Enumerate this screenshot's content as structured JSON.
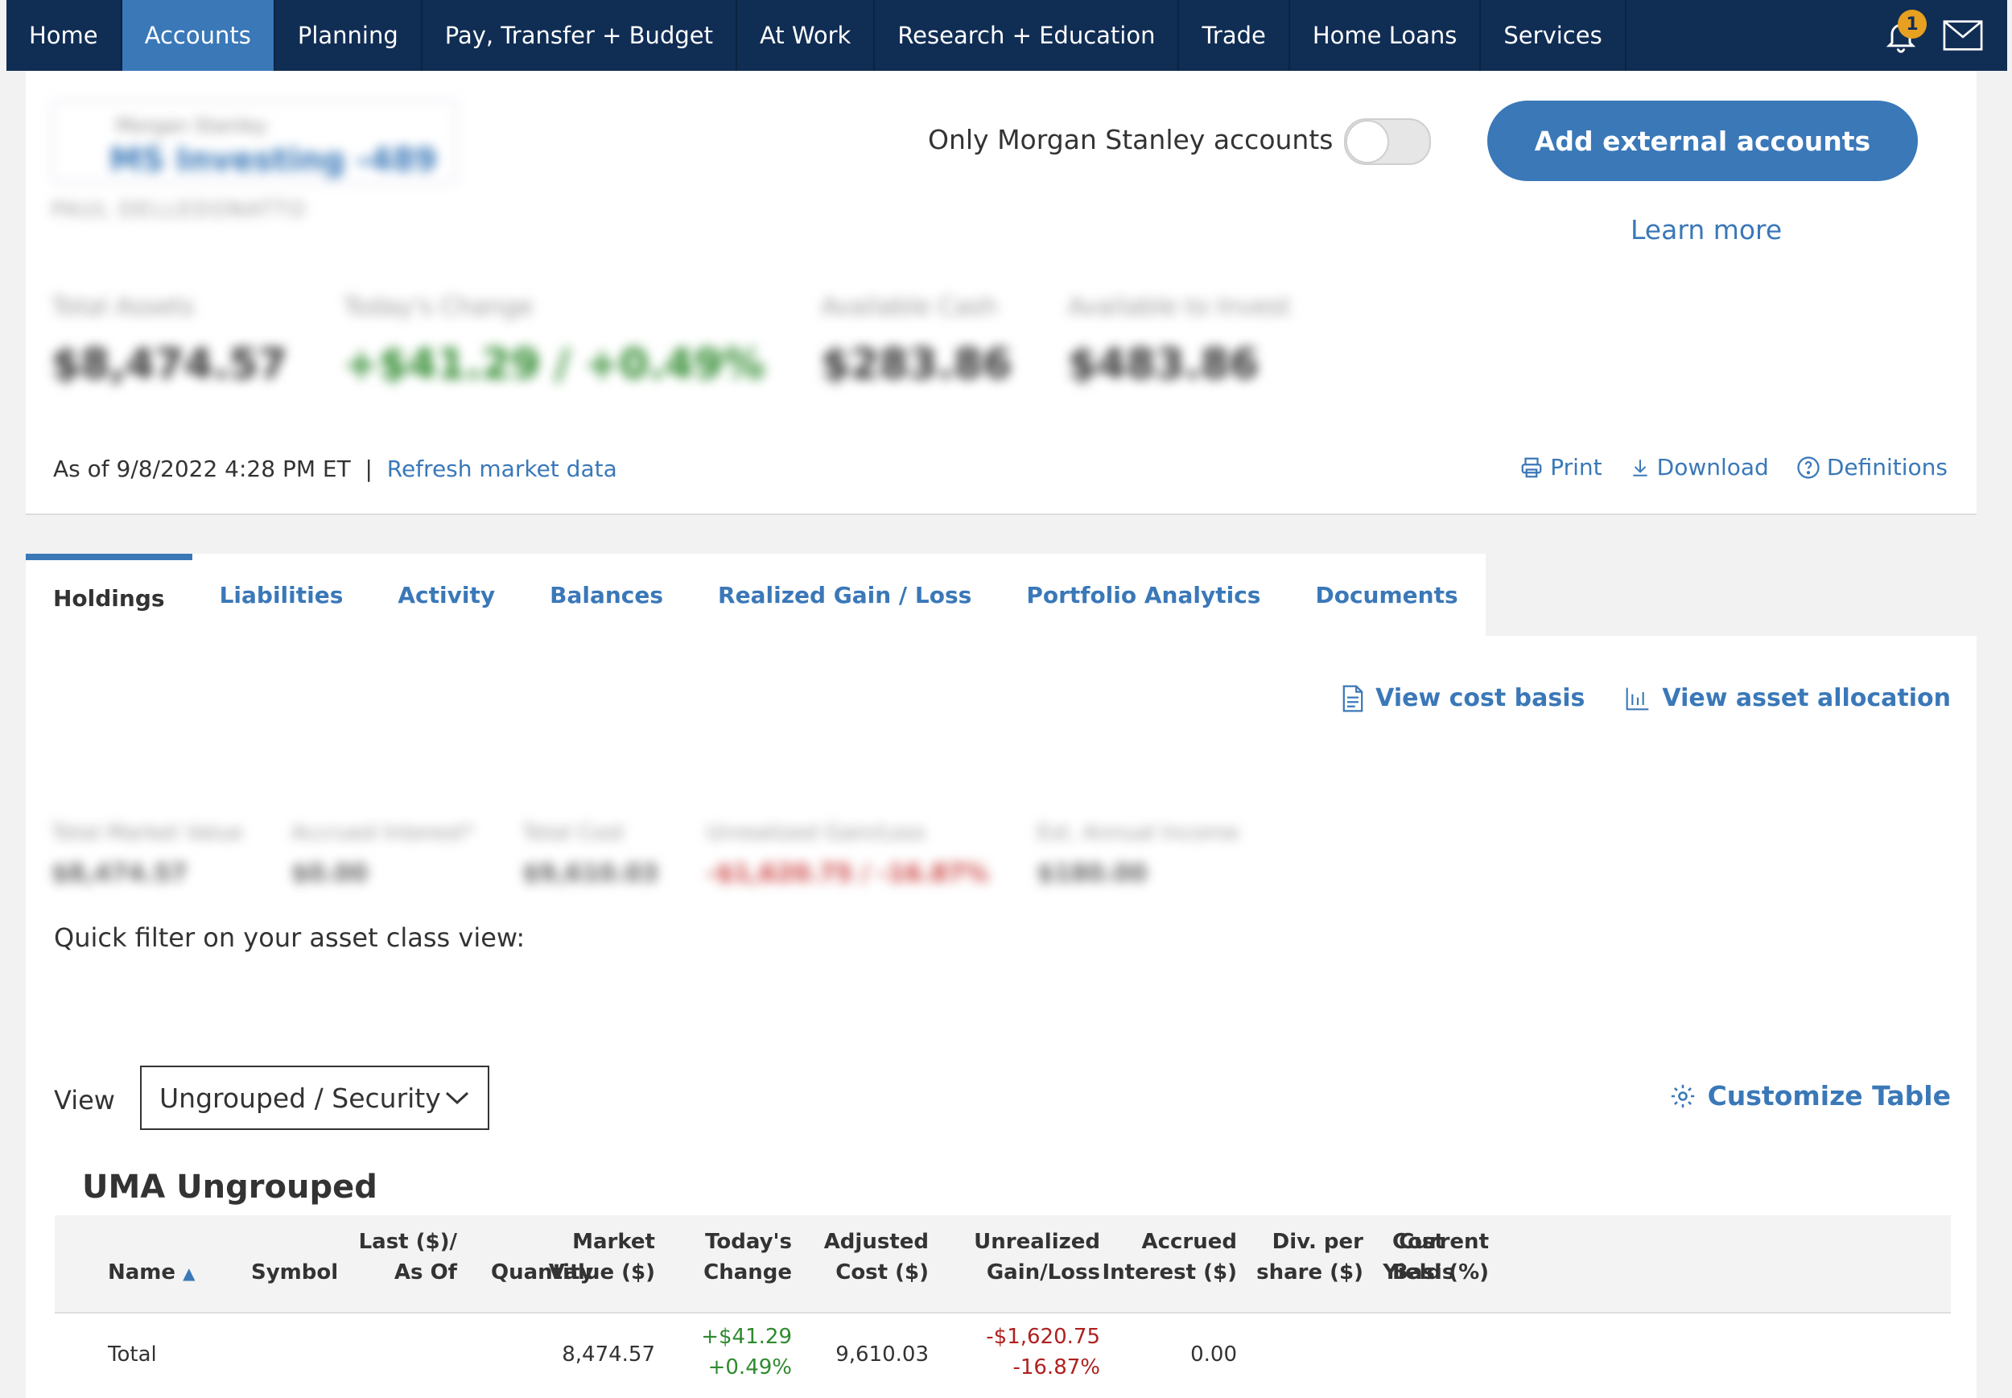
{
  "nav": {
    "items": [
      "Home",
      "Accounts",
      "Planning",
      "Pay, Transfer + Budget",
      "At Work",
      "Research + Education",
      "Trade",
      "Home Loans",
      "Services"
    ],
    "active": "Accounts",
    "notification_count": "1"
  },
  "account": {
    "firm": "Morgan Stanley",
    "name": "MS Investing -489",
    "owner": "PAUL DELLEDONATTO"
  },
  "toggle": {
    "label": "Only Morgan Stanley accounts",
    "on": false
  },
  "add_button": "Add external accounts",
  "learn_more": "Learn more",
  "summary": [
    {
      "label": "Total Assets",
      "value": "$8,474.57"
    },
    {
      "label": "Today's Change",
      "value": "+$41.29 / +0.49%"
    },
    {
      "label": "Available Cash",
      "value": "$283.86"
    },
    {
      "label": "Available to Invest",
      "value": "$483.86"
    }
  ],
  "as_of": "As of 9/8/2022 4:28 PM ET",
  "separator": "|",
  "refresh": "Refresh market data",
  "tools": {
    "print": "Print",
    "download": "Download",
    "definitions": "Definitions"
  },
  "tabs": [
    "Holdings",
    "Liabilities",
    "Activity",
    "Balances",
    "Realized Gain / Loss",
    "Portfolio Analytics",
    "Documents"
  ],
  "sublinks": {
    "cost_basis": "View cost basis",
    "asset_allocation": "View asset allocation"
  },
  "metrics": [
    {
      "label": "Total Market Value",
      "value": "$8,474.57"
    },
    {
      "label": "Accrued Interest*",
      "value": "$0.00"
    },
    {
      "label": "Total Cost",
      "value": "$9,610.03"
    },
    {
      "label": "Unrealized Gain/Loss",
      "value": "-$1,620.75 / -16.87%"
    },
    {
      "label": "Est. Annual Income",
      "value": "$180.00"
    }
  ],
  "quick_filter": "Quick filter on your asset class view:",
  "view": {
    "label": "View",
    "selected": "Ungrouped / Security"
  },
  "customize": "Customize Table",
  "table": {
    "title": "UMA Ungrouped",
    "headers": {
      "name": "Name",
      "symbol": "Symbol",
      "last1": "Last ($)/",
      "last2": "As Of",
      "quantity": "Quantity",
      "mv1": "Market",
      "mv2": "Value ($)",
      "tc1": "Today's",
      "tc2": "Change",
      "ac1": "Adjusted",
      "ac2": "Cost ($)",
      "ug1": "Unrealized",
      "ug2": "Gain/Loss",
      "ai1": "Accrued",
      "ai2": "Interest ($)",
      "dv1": "Div. per",
      "dv2": "share ($)",
      "cy1": "Current",
      "cy2": "Yield (%)",
      "cb1": "Cost",
      "cb2": "Basis"
    },
    "total_row": {
      "name": "Total",
      "market_value": "8,474.57",
      "change_amt": "+$41.29",
      "change_pct": "+0.49%",
      "adjusted_cost": "9,610.03",
      "gain_amt": "-$1,620.75",
      "gain_pct": "-16.87%",
      "accrued_interest": "0.00"
    }
  }
}
